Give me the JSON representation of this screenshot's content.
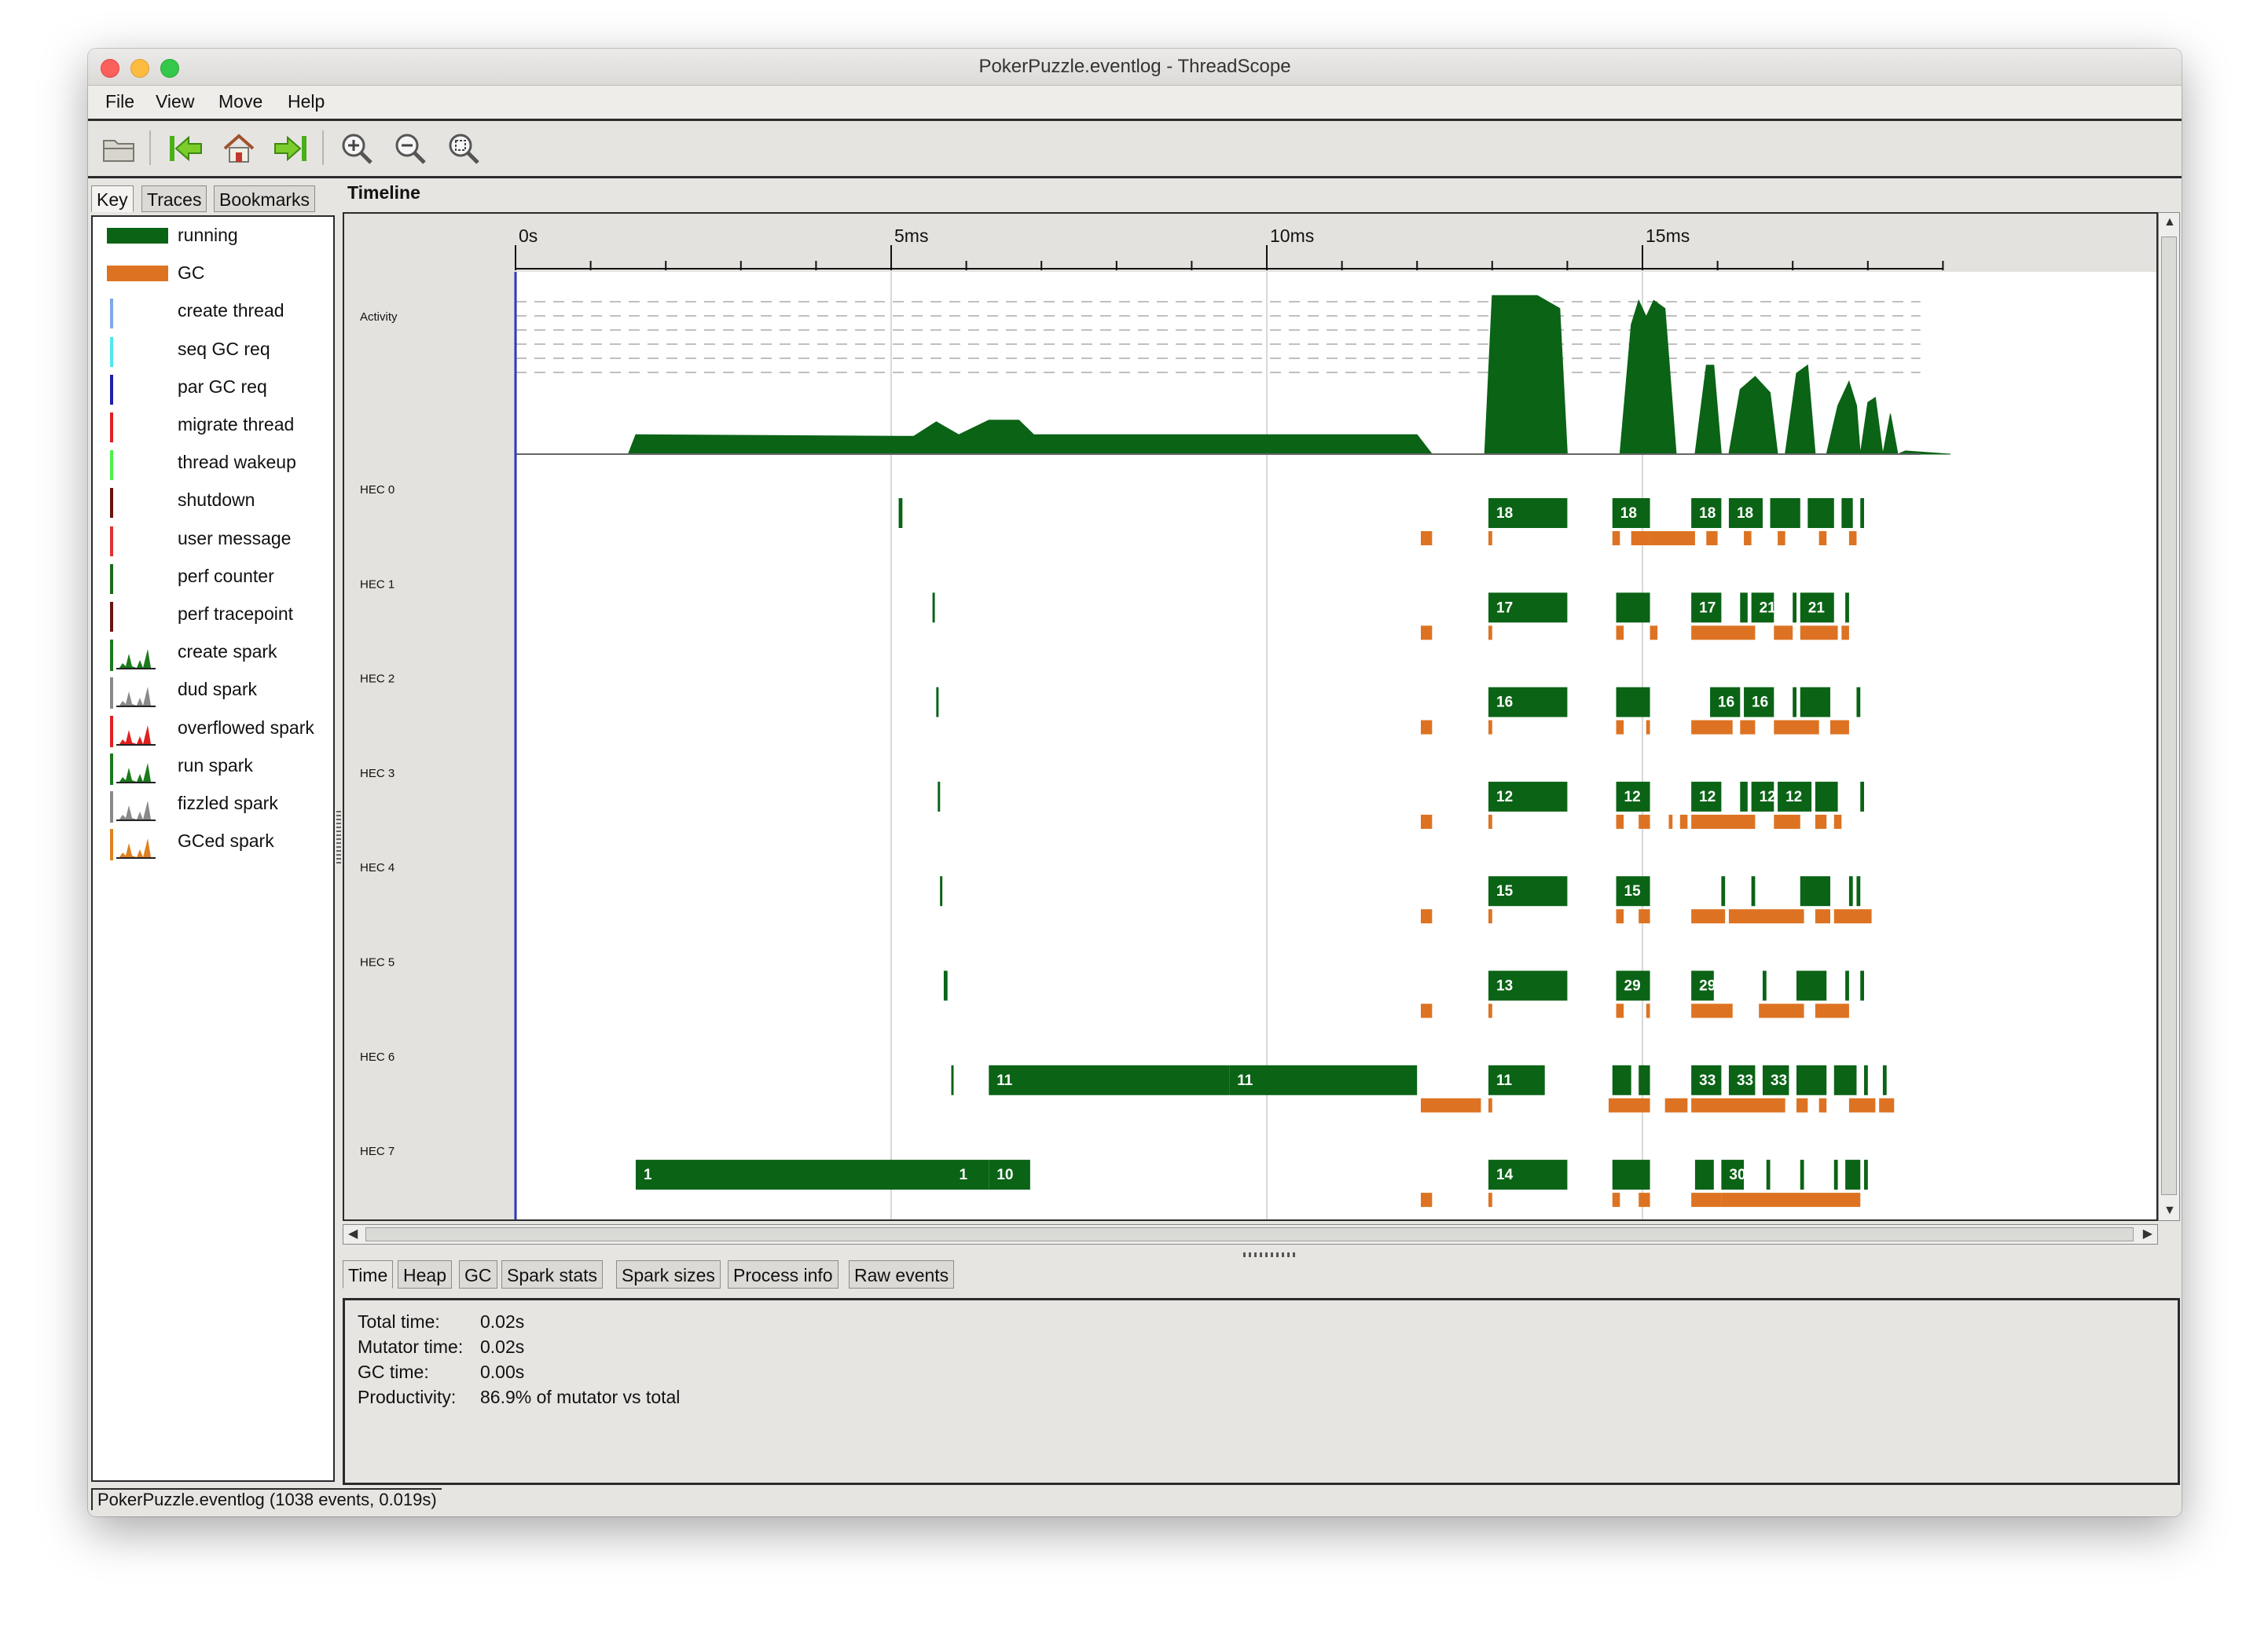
{
  "window": {
    "title": "PokerPuzzle.eventlog - ThreadScope"
  },
  "menu": [
    "File",
    "View",
    "Move",
    "Help"
  ],
  "toolbar": {
    "icons": [
      "open-icon",
      "jump-start-icon",
      "home-icon",
      "jump-end-icon",
      "zoom-in-icon",
      "zoom-out-icon",
      "zoom-fit-icon"
    ]
  },
  "left_tabs": [
    "Key",
    "Traces",
    "Bookmarks"
  ],
  "key": [
    {
      "label": "running",
      "kind": "bar",
      "color": "#0b6316"
    },
    {
      "label": "GC",
      "kind": "bar",
      "color": "#dd7322"
    },
    {
      "label": "create thread",
      "kind": "line",
      "color": "#7fa8e8"
    },
    {
      "label": "seq GC req",
      "kind": "line",
      "color": "#4ee8f0"
    },
    {
      "label": "par GC req",
      "kind": "line",
      "color": "#1f1fa8"
    },
    {
      "label": "migrate thread",
      "kind": "line",
      "color": "#e02020"
    },
    {
      "label": "thread wakeup",
      "kind": "line",
      "color": "#4ef04e"
    },
    {
      "label": "shutdown",
      "kind": "line",
      "color": "#6a1010"
    },
    {
      "label": "user message",
      "kind": "line",
      "color": "#e03030"
    },
    {
      "label": "perf counter",
      "kind": "line",
      "color": "#1b6a1b"
    },
    {
      "label": "perf tracepoint",
      "kind": "line",
      "color": "#6a1414"
    },
    {
      "label": "create spark",
      "kind": "spark",
      "color": "#1b7a1b"
    },
    {
      "label": "dud spark",
      "kind": "spark",
      "color": "#8a8a8a"
    },
    {
      "label": "overflowed spark",
      "kind": "spark",
      "color": "#e02020"
    },
    {
      "label": "run spark",
      "kind": "spark",
      "color": "#1b7a1b"
    },
    {
      "label": "fizzled spark",
      "kind": "spark",
      "color": "#8a8a8a"
    },
    {
      "label": "GCed spark",
      "kind": "spark",
      "color": "#e08020"
    }
  ],
  "timeline": {
    "title": "Timeline",
    "ticks": [
      "0s",
      "5ms",
      "10ms",
      "15ms"
    ],
    "activity_label": "Activity",
    "running_color": "#0b6316",
    "gc_color": "#dd7322"
  },
  "chart_data": {
    "type": "timeline",
    "x_unit": "ms",
    "x_range": [
      0,
      19
    ],
    "activity": [
      [
        0,
        0
      ],
      [
        1.5,
        0
      ],
      [
        1.6,
        0.12
      ],
      [
        5.3,
        0.11
      ],
      [
        5.6,
        0.2
      ],
      [
        5.9,
        0.12
      ],
      [
        6.3,
        0.21
      ],
      [
        6.7,
        0.21
      ],
      [
        6.9,
        0.12
      ],
      [
        12,
        0.12
      ],
      [
        12.2,
        0
      ],
      [
        12.9,
        0
      ],
      [
        13.0,
        0.98
      ],
      [
        13.6,
        0.98
      ],
      [
        13.9,
        0.9
      ],
      [
        14.0,
        0
      ],
      [
        14.7,
        0
      ],
      [
        14.85,
        0.8
      ],
      [
        14.95,
        0.95
      ],
      [
        15.05,
        0.85
      ],
      [
        15.15,
        0.95
      ],
      [
        15.3,
        0.9
      ],
      [
        15.45,
        0
      ],
      [
        15.7,
        0
      ],
      [
        15.85,
        0.55
      ],
      [
        15.95,
        0.55
      ],
      [
        16.05,
        0
      ],
      [
        16.15,
        0
      ],
      [
        16.3,
        0.4
      ],
      [
        16.5,
        0.48
      ],
      [
        16.7,
        0.38
      ],
      [
        16.8,
        0
      ],
      [
        16.9,
        0
      ],
      [
        17.05,
        0.5
      ],
      [
        17.2,
        0.55
      ],
      [
        17.3,
        0
      ],
      [
        17.45,
        0
      ],
      [
        17.6,
        0.3
      ],
      [
        17.75,
        0.45
      ],
      [
        17.85,
        0.3
      ],
      [
        17.9,
        0
      ],
      [
        18.0,
        0.32
      ],
      [
        18.1,
        0.35
      ],
      [
        18.2,
        0
      ],
      [
        18.3,
        0.25
      ],
      [
        18.4,
        0
      ],
      [
        18.5,
        0.02
      ],
      [
        19.1,
        0
      ]
    ],
    "hecs": [
      {
        "name": "HEC 0",
        "running": [
          [
            5.1,
            5.15,
            ""
          ],
          [
            12.95,
            14.0,
            "18"
          ],
          [
            14.6,
            15.1,
            "18"
          ],
          [
            15.65,
            16.05,
            "18"
          ],
          [
            16.15,
            16.6,
            "18"
          ],
          [
            16.7,
            17.1,
            ""
          ],
          [
            17.2,
            17.55,
            ""
          ],
          [
            17.65,
            17.8,
            ""
          ],
          [
            17.9,
            17.95,
            ""
          ]
        ],
        "gc": [
          [
            12.05,
            12.2
          ],
          [
            12.95,
            13.0
          ],
          [
            14.6,
            14.7
          ],
          [
            14.85,
            15.1
          ],
          [
            15.1,
            15.7
          ],
          [
            15.85,
            16.0
          ],
          [
            16.35,
            16.45
          ],
          [
            16.8,
            16.9
          ],
          [
            17.35,
            17.45
          ],
          [
            17.75,
            17.85
          ]
        ],
        "labels_pos": []
      },
      {
        "name": "HEC 1",
        "running": [
          [
            5.55,
            5.58,
            ""
          ],
          [
            12.95,
            14.0,
            "17"
          ],
          [
            14.65,
            15.1,
            ""
          ],
          [
            15.65,
            16.05,
            "17"
          ],
          [
            16.3,
            16.4,
            ""
          ],
          [
            16.45,
            16.75,
            "21"
          ],
          [
            17.0,
            17.05,
            ""
          ],
          [
            17.1,
            17.55,
            "21"
          ],
          [
            17.7,
            17.75,
            ""
          ]
        ],
        "gc": [
          [
            12.05,
            12.2
          ],
          [
            12.95,
            13.0
          ],
          [
            14.65,
            14.75
          ],
          [
            15.1,
            15.2
          ],
          [
            15.65,
            16.5
          ],
          [
            16.75,
            17.0
          ],
          [
            17.1,
            17.6
          ],
          [
            17.65,
            17.75
          ]
        ]
      },
      {
        "name": "HEC 2",
        "running": [
          [
            5.6,
            5.63,
            ""
          ],
          [
            12.95,
            14.0,
            "16"
          ],
          [
            14.65,
            15.1,
            ""
          ],
          [
            15.9,
            16.3,
            "16"
          ],
          [
            16.35,
            16.75,
            "16"
          ],
          [
            17.0,
            17.05,
            ""
          ],
          [
            17.1,
            17.5,
            ""
          ],
          [
            17.85,
            17.9,
            ""
          ]
        ],
        "gc": [
          [
            12.05,
            12.2
          ],
          [
            12.95,
            13.0
          ],
          [
            14.65,
            14.75
          ],
          [
            15.05,
            15.1
          ],
          [
            15.65,
            16.2
          ],
          [
            16.3,
            16.5
          ],
          [
            16.75,
            17.35
          ],
          [
            17.5,
            17.75
          ]
        ]
      },
      {
        "name": "HEC 3",
        "running": [
          [
            5.62,
            5.64,
            ""
          ],
          [
            12.95,
            14.0,
            "12"
          ],
          [
            14.65,
            15.1,
            "12"
          ],
          [
            15.65,
            16.05,
            "12"
          ],
          [
            16.3,
            16.4,
            ""
          ],
          [
            16.45,
            16.75,
            "12"
          ],
          [
            16.8,
            17.25,
            "12"
          ],
          [
            17.3,
            17.6,
            ""
          ],
          [
            17.9,
            17.95,
            ""
          ]
        ],
        "gc": [
          [
            12.05,
            12.2
          ],
          [
            12.95,
            13.0
          ],
          [
            14.65,
            14.75
          ],
          [
            14.95,
            15.1
          ],
          [
            15.35,
            15.4
          ],
          [
            15.5,
            15.6
          ],
          [
            15.65,
            16.5
          ],
          [
            16.75,
            17.1
          ],
          [
            17.3,
            17.45
          ],
          [
            17.55,
            17.65
          ]
        ]
      },
      {
        "name": "HEC 4",
        "running": [
          [
            5.65,
            5.67,
            ""
          ],
          [
            12.95,
            14.0,
            "15"
          ],
          [
            14.65,
            15.1,
            "15"
          ],
          [
            16.05,
            16.1,
            ""
          ],
          [
            16.45,
            16.5,
            ""
          ],
          [
            17.1,
            17.15,
            ""
          ],
          [
            17.15,
            17.5,
            ""
          ],
          [
            17.75,
            17.8,
            ""
          ],
          [
            17.85,
            17.9,
            ""
          ]
        ],
        "gc": [
          [
            12.05,
            12.2
          ],
          [
            12.95,
            13.0
          ],
          [
            14.65,
            14.75
          ],
          [
            14.95,
            15.1
          ],
          [
            15.65,
            16.1
          ],
          [
            16.15,
            17.15
          ],
          [
            17.3,
            17.5
          ],
          [
            17.55,
            18.05
          ]
        ]
      },
      {
        "name": "HEC 5",
        "running": [
          [
            5.7,
            5.75,
            ""
          ],
          [
            12.95,
            14.0,
            "13"
          ],
          [
            14.65,
            15.1,
            "29"
          ],
          [
            15.65,
            15.95,
            "29"
          ],
          [
            16.6,
            16.65,
            ""
          ],
          [
            17.05,
            17.45,
            ""
          ],
          [
            17.7,
            17.75,
            ""
          ],
          [
            17.9,
            17.95,
            ""
          ]
        ],
        "gc": [
          [
            12.05,
            12.2
          ],
          [
            12.95,
            13.0
          ],
          [
            14.65,
            14.75
          ],
          [
            15.05,
            15.1
          ],
          [
            15.65,
            16.2
          ],
          [
            16.55,
            17.15
          ],
          [
            17.3,
            17.75
          ]
        ]
      },
      {
        "name": "HEC 6",
        "running": [
          [
            5.8,
            5.82,
            ""
          ],
          [
            6.3,
            9.5,
            "11"
          ],
          [
            9.5,
            12.0,
            "11"
          ],
          [
            12.95,
            13.7,
            "11"
          ],
          [
            14.6,
            14.85,
            ""
          ],
          [
            14.95,
            15.1,
            ""
          ],
          [
            15.65,
            16.05,
            "33"
          ],
          [
            16.15,
            16.5,
            "33"
          ],
          [
            16.6,
            16.95,
            "33"
          ],
          [
            17.05,
            17.45,
            ""
          ],
          [
            17.55,
            17.85,
            ""
          ],
          [
            17.95,
            18.0,
            ""
          ],
          [
            18.2,
            18.25,
            ""
          ]
        ],
        "gc": [
          [
            12.05,
            12.85
          ],
          [
            12.95,
            13.0
          ],
          [
            14.55,
            15.1
          ],
          [
            15.3,
            15.6
          ],
          [
            15.65,
            16.9
          ],
          [
            17.05,
            17.2
          ],
          [
            17.35,
            17.45
          ],
          [
            17.75,
            18.1
          ],
          [
            18.15,
            18.35
          ]
        ]
      },
      {
        "name": "HEC 7",
        "running": [
          [
            1.6,
            5.8,
            "1"
          ],
          [
            5.8,
            6.3,
            "1"
          ],
          [
            6.3,
            6.85,
            "10"
          ],
          [
            12.95,
            14.0,
            "14"
          ],
          [
            14.6,
            15.1,
            ""
          ],
          [
            15.7,
            15.95,
            ""
          ],
          [
            16.05,
            16.35,
            "30"
          ],
          [
            16.65,
            16.7,
            ""
          ],
          [
            17.1,
            17.15,
            ""
          ],
          [
            17.55,
            17.6,
            ""
          ],
          [
            17.7,
            17.9,
            ""
          ],
          [
            17.95,
            18.0,
            ""
          ]
        ],
        "gc": [
          [
            12.05,
            12.2
          ],
          [
            12.95,
            13.0
          ],
          [
            14.6,
            14.7
          ],
          [
            14.95,
            15.1
          ],
          [
            15.65,
            16.05
          ],
          [
            16.05,
            17.9
          ]
        ]
      }
    ]
  },
  "bottom_tabs": [
    "Time",
    "Heap",
    "GC",
    "Spark stats",
    "Spark sizes",
    "Process info",
    "Raw events"
  ],
  "info": [
    {
      "label": "Total time:",
      "value": "0.02s"
    },
    {
      "label": "Mutator time:",
      "value": "0.02s"
    },
    {
      "label": "GC time:",
      "value": "0.00s"
    },
    {
      "label": "Productivity:",
      "value": "86.9% of mutator vs total"
    }
  ],
  "status": "PokerPuzzle.eventlog (1038 events, 0.019s)"
}
